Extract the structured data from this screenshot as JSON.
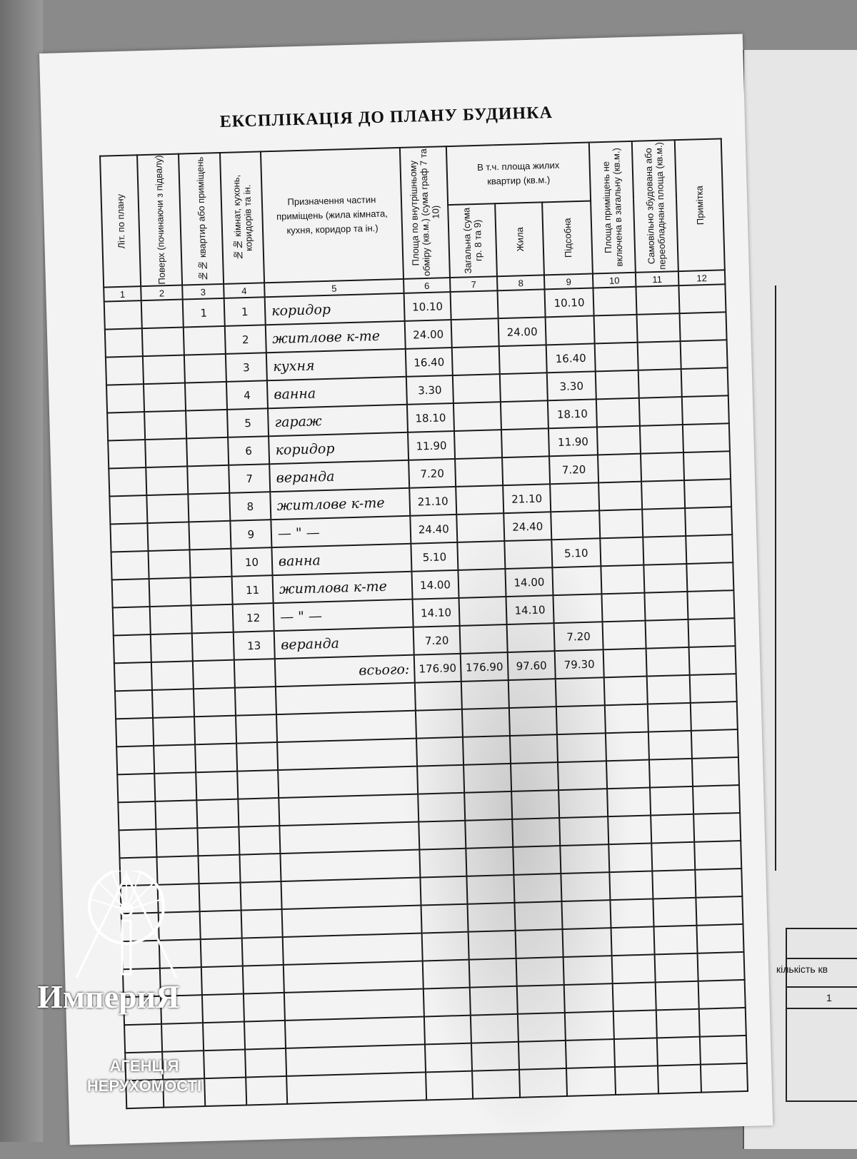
{
  "title": "ЕКСПЛІКАЦІЯ ДО ПЛАНУ БУДИНКА",
  "headers": {
    "c1": "Літ. по плану",
    "c2": "Поверх (починаючи з підвалу)",
    "c3": "№№ квартир або приміщень",
    "c4": "№№ кімнат, кухонь, коридорів та ін.",
    "c5": "Призначення частин приміщень (жила кімната, кухня, коридор та ін.)",
    "c6": "Площа по внутрішньому обміру (кв.м.) (сума граф 7 та 10)",
    "group": "В т.ч. площа жилих квартир (кв.м.)",
    "c7": "Загальна (сума гр. 8 та 9)",
    "c8": "Жила",
    "c9": "Підсобна",
    "c10": "Площа приміщень не включена в загальну (кв.м.)",
    "c11": "Самовільно збудована або переобладнана площа (кв.м.)",
    "c12": "Примітка"
  },
  "column_numbers": [
    "1",
    "2",
    "3",
    "4",
    "5",
    "6",
    "7",
    "8",
    "9",
    "10",
    "11",
    "12"
  ],
  "rows": [
    {
      "apt": "1",
      "room": "1",
      "purpose": "коридор",
      "area": "10.10",
      "total": "",
      "living": "",
      "aux": "10.10"
    },
    {
      "apt": "",
      "room": "2",
      "purpose": "житлове к-те",
      "area": "24.00",
      "total": "",
      "living": "24.00",
      "aux": ""
    },
    {
      "apt": "",
      "room": "3",
      "purpose": "кухня",
      "area": "16.40",
      "total": "",
      "living": "",
      "aux": "16.40"
    },
    {
      "apt": "",
      "room": "4",
      "purpose": "ванна",
      "area": "3.30",
      "total": "",
      "living": "",
      "aux": "3.30"
    },
    {
      "apt": "",
      "room": "5",
      "purpose": "гараж",
      "area": "18.10",
      "total": "",
      "living": "",
      "aux": "18.10"
    },
    {
      "apt": "",
      "room": "6",
      "purpose": "коридор",
      "area": "11.90",
      "total": "",
      "living": "",
      "aux": "11.90"
    },
    {
      "apt": "",
      "room": "7",
      "purpose": "веранда",
      "area": "7.20",
      "total": "",
      "living": "",
      "aux": "7.20"
    },
    {
      "apt": "",
      "room": "8",
      "purpose": "житлове к-те",
      "area": "21.10",
      "total": "",
      "living": "21.10",
      "aux": ""
    },
    {
      "apt": "",
      "room": "9",
      "purpose": "— \" —",
      "area": "24.40",
      "total": "",
      "living": "24.40",
      "aux": ""
    },
    {
      "apt": "",
      "room": "10",
      "purpose": "ванна",
      "area": "5.10",
      "total": "",
      "living": "",
      "aux": "5.10"
    },
    {
      "apt": "",
      "room": "11",
      "purpose": "житлова к-те",
      "area": "14.00",
      "total": "",
      "living": "14.00",
      "aux": ""
    },
    {
      "apt": "",
      "room": "12",
      "purpose": "— \" —",
      "area": "14.10",
      "total": "",
      "living": "14.10",
      "aux": ""
    },
    {
      "apt": "",
      "room": "13",
      "purpose": "веранда",
      "area": "7.20",
      "total": "",
      "living": "",
      "aux": "7.20"
    },
    {
      "apt": "",
      "room": "",
      "purpose": "всього:",
      "area": "176.90",
      "total": "176.90",
      "living": "97.60",
      "aux": "79.30"
    }
  ],
  "right_page": {
    "label": "кількість кв",
    "value": "1"
  },
  "watermark": {
    "brand": "ИмпериЯ",
    "line1": "АГЕНЦІЯ",
    "line2": "НЕРУХОМОСТІ"
  }
}
